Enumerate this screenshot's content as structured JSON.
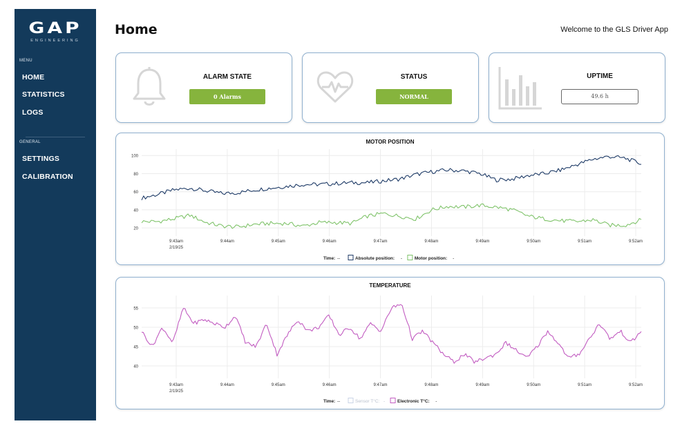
{
  "sidebar": {
    "logo_main": "GAP",
    "logo_sub": "ENGINEERING",
    "menu_label": "MENU",
    "general_label": "GENERAL",
    "items": [
      {
        "label": "HOME"
      },
      {
        "label": "STATISTICS"
      },
      {
        "label": "LOGS"
      },
      {
        "label": "SETTINGS"
      },
      {
        "label": "CALIBRATION"
      }
    ]
  },
  "header": {
    "title": "Home",
    "welcome": "Welcome to the GLS Driver App"
  },
  "cards": {
    "alarm": {
      "title": "ALARM STATE",
      "value": "0 Alarms",
      "icon": "bell-icon",
      "color": "#86b43d"
    },
    "status": {
      "title": "STATUS",
      "value": "NORMAL",
      "icon": "heartbeat-icon",
      "color": "#86b43d"
    },
    "uptime": {
      "title": "UPTIME",
      "value": "49.6 h",
      "icon": "bar-chart-icon"
    }
  },
  "chart_data": [
    {
      "type": "line",
      "title": "MOTOR POSITION",
      "x_ticks": [
        "9:43am",
        "9:44am",
        "9:45am",
        "9:46am",
        "9:47am",
        "9:48am",
        "9:49am",
        "9:50am",
        "9:51am",
        "9:52am"
      ],
      "x_date_label": "2/19/25",
      "y_ticks": [
        20,
        40,
        60,
        80,
        100
      ],
      "ylim": [
        14,
        104
      ],
      "grid": true,
      "legend": {
        "time_label": "Time:",
        "time_value": "--"
      },
      "series": [
        {
          "name": "Absolute position:",
          "legend_value": "-",
          "color": "#1d3a66",
          "values": [
            53,
            57,
            62,
            64,
            61,
            58,
            59,
            62,
            64,
            66,
            68,
            68,
            69,
            70,
            70,
            72,
            74,
            79,
            82,
            84,
            83,
            80,
            73,
            74,
            78,
            80,
            84,
            90,
            96,
            99,
            97,
            91
          ]
        },
        {
          "name": "Motor position:",
          "legend_value": "-",
          "color": "#7fc36a",
          "values": [
            27,
            27,
            30,
            34,
            26,
            22,
            21,
            24,
            25,
            25,
            22,
            26,
            26,
            25,
            33,
            36,
            33,
            30,
            40,
            44,
            43,
            45,
            43,
            40,
            33,
            30,
            28,
            27,
            29,
            23,
            23,
            29
          ]
        }
      ]
    },
    {
      "type": "line",
      "title": "TEMPERATURE",
      "x_ticks": [
        "9:43am",
        "9:44am",
        "9:45am",
        "9:46am",
        "9:47am",
        "9:48am",
        "9:49am",
        "9:50am",
        "9:51am",
        "9:52am"
      ],
      "x_date_label": "2/19/25",
      "y_ticks": [
        40,
        45,
        50,
        55
      ],
      "ylim": [
        37.5,
        57.5
      ],
      "grid": true,
      "legend": {
        "time_label": "Time:",
        "time_value": "--"
      },
      "series": [
        {
          "name": "Sensor T°C:",
          "legend_value": "-",
          "color": "#c9d3e6",
          "values": []
        },
        {
          "name": "Electronic T°C:",
          "legend_value": "-",
          "color": "#c25cc1",
          "values": [
            49,
            45,
            50,
            46,
            55,
            51,
            52,
            51,
            50,
            53,
            46,
            45,
            51,
            43,
            48,
            52,
            49,
            50,
            53,
            48,
            50,
            47,
            51,
            49,
            55,
            56,
            47,
            49,
            46,
            43,
            41,
            43,
            41,
            42,
            43,
            46,
            44,
            42,
            45,
            49,
            46,
            42,
            43,
            47,
            51,
            47,
            49,
            46,
            49
          ]
        }
      ]
    }
  ]
}
